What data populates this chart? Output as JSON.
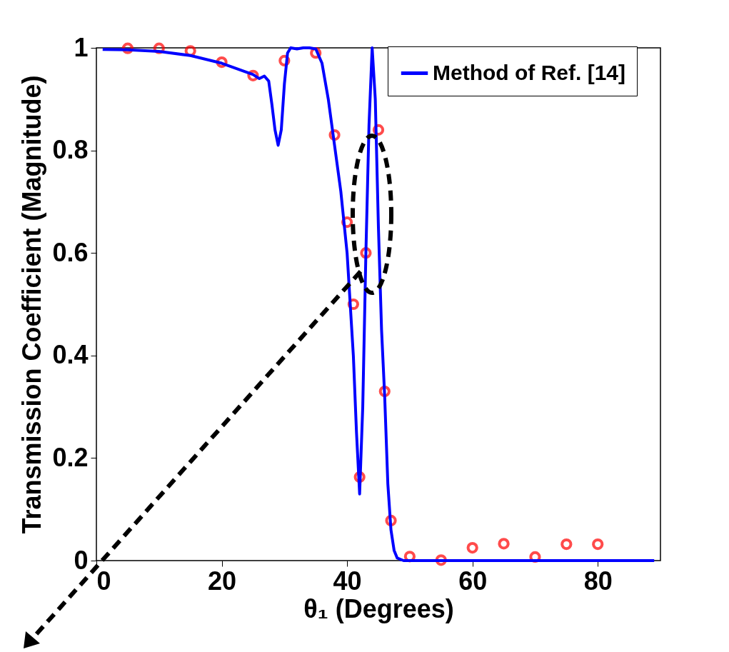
{
  "chart_data": {
    "type": "line",
    "xlabel": "θ₁ (Degrees)",
    "ylabel": "Transmission Coefficient (Magnitude)",
    "xlim": [
      0,
      90
    ],
    "ylim": [
      0,
      1
    ],
    "xticks": [
      0,
      20,
      40,
      60,
      80
    ],
    "yticks": [
      0,
      0.2,
      0.4,
      0.6,
      0.8,
      1
    ],
    "grid": false,
    "legend": "top right",
    "series": [
      {
        "type": "scatter",
        "marker": "circle",
        "color": "#ff0000",
        "x": [
          5,
          10,
          15,
          20,
          25,
          30,
          35,
          38,
          40,
          41,
          42,
          43,
          45,
          46,
          47,
          50,
          55,
          60,
          65,
          70,
          75,
          80
        ],
        "values": [
          0.999,
          0.999,
          0.994,
          0.972,
          0.946,
          0.975,
          0.99,
          0.83,
          0.66,
          0.5,
          0.163,
          0.6,
          0.84,
          0.33,
          0.078,
          0.008,
          0.001,
          0.025,
          0.033,
          0.007,
          0.032,
          0.032
        ]
      },
      {
        "type": "line",
        "marker": "none",
        "line_style": "solid",
        "name": "Method of Ref. [14]",
        "color": "#0000ff",
        "x": [
          1,
          5,
          10,
          15,
          20,
          25,
          26,
          26.8,
          27.5,
          28,
          28.5,
          29,
          29.5,
          30,
          30.5,
          31,
          32,
          33,
          34,
          35,
          36,
          37,
          38,
          39,
          40,
          41,
          41.5,
          42,
          42.5,
          43,
          43.5,
          44,
          44.5,
          45,
          45.5,
          46,
          46.5,
          47,
          47.5,
          48,
          49,
          89
        ],
        "values": [
          0.997,
          0.996,
          0.993,
          0.985,
          0.97,
          0.948,
          0.94,
          0.945,
          0.935,
          0.89,
          0.84,
          0.81,
          0.84,
          0.93,
          0.99,
          1.0,
          0.998,
          1.0,
          1.0,
          0.998,
          0.97,
          0.9,
          0.81,
          0.72,
          0.6,
          0.4,
          0.25,
          0.13,
          0.3,
          0.6,
          0.85,
          1.0,
          0.9,
          0.65,
          0.45,
          0.32,
          0.15,
          0.06,
          0.02,
          0.005,
          0,
          0
        ]
      }
    ]
  }
}
